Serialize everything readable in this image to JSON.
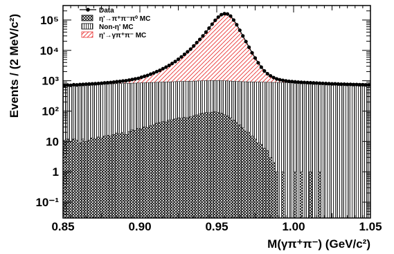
{
  "chart_data": {
    "type": "histogram",
    "title": "",
    "xlabel": "M(γπ⁺π⁻) (GeV/c²)",
    "ylabel": "Events / (2 MeV/c²)",
    "xlim": [
      0.85,
      1.05
    ],
    "ylim": [
      0.03,
      300000
    ],
    "yscale": "log",
    "bin_width": 0.002,
    "grid": false,
    "legend_position": "top-left",
    "x_ticks": [
      "0.85",
      "0.90",
      "0.95",
      "1.00",
      "1.05"
    ],
    "y_ticks": [
      {
        "label": "10⁻¹",
        "value": 0.1
      },
      {
        "label": "1",
        "value": 1
      },
      {
        "label": "10",
        "value": 10
      },
      {
        "label": "10²",
        "value": 100
      },
      {
        "label": "10³",
        "value": 1000
      },
      {
        "label": "10⁴",
        "value": 10000
      },
      {
        "label": "10⁵",
        "value": 100000
      }
    ],
    "series": [
      {
        "name": "Data",
        "style": "points",
        "color": "#000000",
        "x": [
          0.851,
          0.853,
          0.855,
          0.857,
          0.859,
          0.861,
          0.863,
          0.865,
          0.867,
          0.869,
          0.871,
          0.873,
          0.875,
          0.877,
          0.879,
          0.881,
          0.883,
          0.885,
          0.887,
          0.889,
          0.891,
          0.893,
          0.895,
          0.897,
          0.899,
          0.901,
          0.903,
          0.905,
          0.907,
          0.909,
          0.911,
          0.913,
          0.915,
          0.917,
          0.919,
          0.921,
          0.923,
          0.925,
          0.927,
          0.929,
          0.931,
          0.933,
          0.935,
          0.937,
          0.939,
          0.941,
          0.943,
          0.945,
          0.947,
          0.949,
          0.951,
          0.953,
          0.955,
          0.957,
          0.959,
          0.961,
          0.963,
          0.965,
          0.967,
          0.969,
          0.971,
          0.973,
          0.975,
          0.977,
          0.979,
          0.981,
          0.983,
          0.985,
          0.987,
          0.989,
          0.991,
          0.993,
          0.995,
          0.997,
          0.999,
          1.001,
          1.003,
          1.005,
          1.007,
          1.009,
          1.011,
          1.013,
          1.015,
          1.017,
          1.019,
          1.021,
          1.023,
          1.025,
          1.027,
          1.029,
          1.031,
          1.033,
          1.035,
          1.037,
          1.039,
          1.041,
          1.043,
          1.045,
          1.047,
          1.049
        ],
        "values": [
          700,
          720,
          710,
          740,
          730,
          750,
          760,
          770,
          780,
          790,
          800,
          810,
          830,
          850,
          860,
          880,
          900,
          930,
          950,
          980,
          1000,
          1050,
          1100,
          1150,
          1200,
          1300,
          1400,
          1500,
          1650,
          1800,
          2000,
          2200,
          2500,
          2800,
          3200,
          3700,
          4300,
          5100,
          6100,
          7400,
          9000,
          11000,
          14000,
          18000,
          23000,
          30000,
          40000,
          54000,
          73000,
          98000,
          125000,
          150000,
          162000,
          158000,
          135000,
          100000,
          70000,
          46000,
          30000,
          19500,
          12700,
          8300,
          5600,
          3900,
          2800,
          2100,
          1700,
          1450,
          1270,
          1150,
          1080,
          1030,
          990,
          960,
          940,
          920,
          900,
          890,
          880,
          870,
          860,
          850,
          840,
          830,
          820,
          810,
          800,
          790,
          790,
          780,
          770,
          770,
          760,
          760,
          750,
          750,
          740,
          740,
          730,
          730
        ]
      },
      {
        "name": "η'→π⁺π⁻π⁰ MC",
        "style": "cross-hatch",
        "color": "#000000",
        "values": [
          11,
          12,
          10,
          12,
          11,
          9,
          12,
          10,
          11,
          13,
          12,
          14,
          13,
          15,
          16,
          15,
          17,
          19,
          18,
          20,
          17,
          21,
          24,
          23,
          27,
          26,
          30,
          29,
          33,
          35,
          40,
          42,
          45,
          44,
          50,
          52,
          55,
          60,
          58,
          62,
          60,
          65,
          70,
          75,
          80,
          85,
          90,
          88,
          92,
          95,
          90,
          85,
          78,
          70,
          60,
          50,
          42,
          35,
          28,
          22,
          20,
          15,
          12,
          9,
          8,
          6,
          5,
          3,
          2,
          1,
          0,
          1,
          0,
          0,
          0,
          1,
          0,
          1,
          0,
          0,
          1,
          0,
          0,
          1,
          0,
          0,
          0,
          0,
          0,
          0,
          0,
          0,
          0,
          0,
          0,
          0,
          0,
          0,
          0,
          0
        ]
      },
      {
        "name": "Non-η' MC",
        "style": "vertical-hatch",
        "color": "#000000",
        "values": [
          700,
          710,
          705,
          715,
          720,
          725,
          730,
          735,
          740,
          745,
          750,
          755,
          760,
          765,
          770,
          775,
          780,
          785,
          790,
          795,
          800,
          805,
          810,
          815,
          820,
          825,
          830,
          835,
          840,
          845,
          850,
          855,
          860,
          865,
          870,
          875,
          880,
          885,
          890,
          895,
          900,
          900,
          905,
          905,
          910,
          910,
          915,
          915,
          920,
          920,
          925,
          925,
          920,
          920,
          915,
          915,
          910,
          910,
          905,
          905,
          900,
          900,
          895,
          895,
          890,
          890,
          885,
          885,
          880,
          880,
          875,
          875,
          870,
          870,
          865,
          865,
          860,
          860,
          855,
          855,
          850,
          850,
          845,
          845,
          840,
          840,
          835,
          835,
          830,
          830,
          825,
          825,
          820,
          820,
          815,
          815,
          810,
          810,
          805,
          805
        ]
      },
      {
        "name": "η'→γπ⁺π⁻ MC",
        "style": "diagonal-hatch",
        "color": "#e83030"
      }
    ]
  }
}
